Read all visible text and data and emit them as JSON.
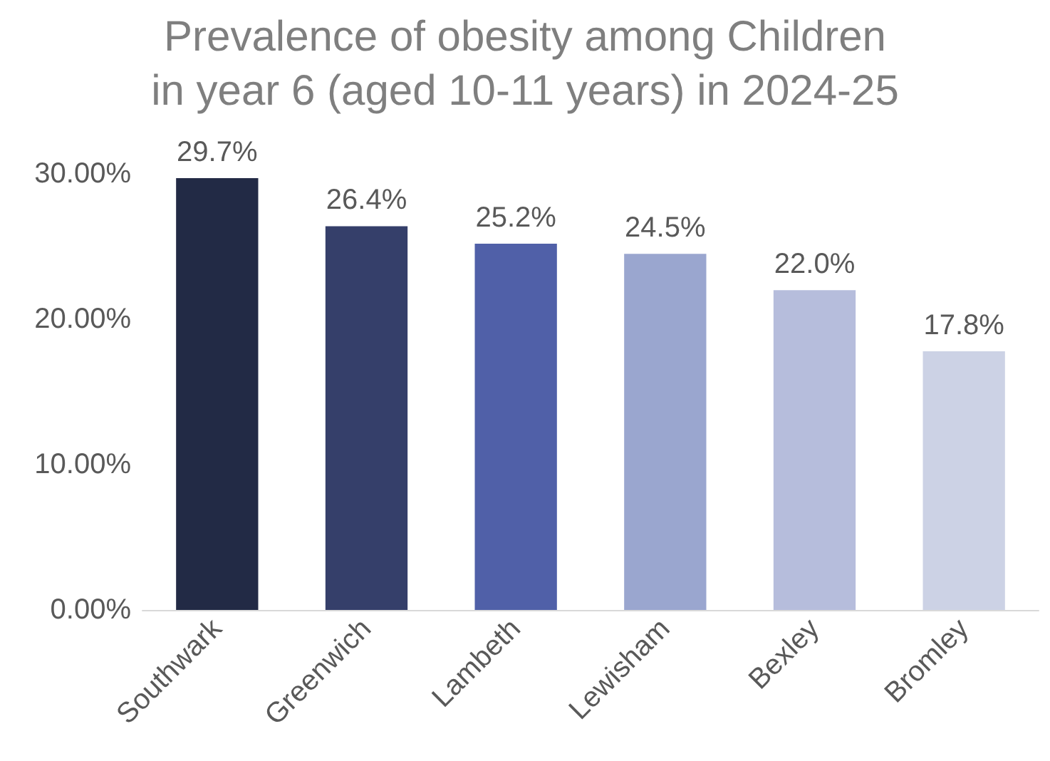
{
  "chart_data": {
    "type": "bar",
    "title": "Prevalence of obesity among Children\nin year 6 (aged 10-11 years) in 2024-25",
    "categories": [
      "Southwark",
      "Greenwich",
      "Lambeth",
      "Lewisham",
      "Bexley",
      "Bromley"
    ],
    "values": [
      29.7,
      26.4,
      25.2,
      24.5,
      22.0,
      17.8
    ],
    "colors": [
      "#222a45",
      "#353f6a",
      "#5060a8",
      "#9aa6cf",
      "#b6bddc",
      "#ccd2e5"
    ],
    "value_labels": [
      "29.7%",
      "26.4%",
      "25.2%",
      "24.5%",
      "22.0%",
      "17.8%"
    ],
    "ylim": [
      0,
      30
    ],
    "yticks": [
      {
        "value": 0,
        "label": "0.00%"
      },
      {
        "value": 10,
        "label": "10.00%"
      },
      {
        "value": 20,
        "label": "20.00%"
      },
      {
        "value": 30,
        "label": "30.00%"
      }
    ]
  }
}
